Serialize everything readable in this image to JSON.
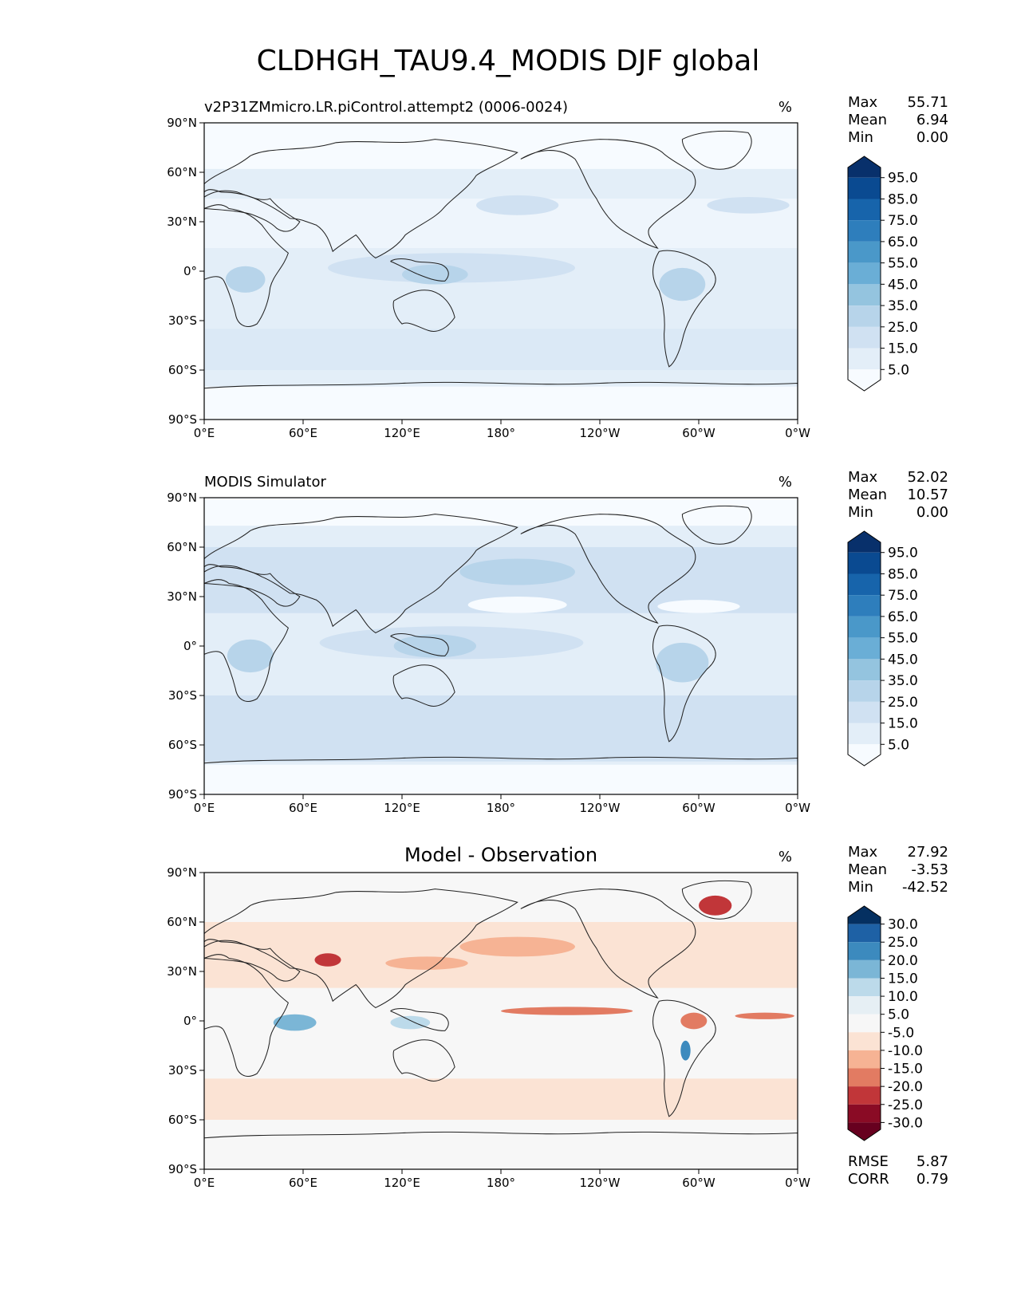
{
  "figure_title": "CLDHGH_TAU9.4_MODIS DJF global",
  "lat_ticks": [
    "90°N",
    "60°N",
    "30°N",
    "0°",
    "30°S",
    "60°S",
    "90°S"
  ],
  "lon_ticks": [
    "0°E",
    "60°E",
    "120°E",
    "180°",
    "120°W",
    "60°W",
    "0°W"
  ],
  "panels": [
    {
      "title_left": "v2P31ZMmicro.LR.piControl.attempt2 (0006-0024)",
      "title_center": "",
      "units": "%",
      "stats": [
        {
          "label": "Max",
          "value": "55.71"
        },
        {
          "label": "Mean",
          "value": "6.94"
        },
        {
          "label": "Min",
          "value": "0.00"
        }
      ],
      "colorbar": {
        "labels": [
          "95.0",
          "85.0",
          "75.0",
          "65.0",
          "55.0",
          "45.0",
          "35.0",
          "25.0",
          "15.0",
          "5.0"
        ],
        "colors": [
          "#08306b",
          "#0a4a91",
          "#1764ab",
          "#2e7ebc",
          "#4a98c9",
          "#6aaed6",
          "#94c4df",
          "#b7d4ea",
          "#d0e1f2",
          "#e3eef8",
          "#f7fbff"
        ]
      }
    },
    {
      "title_left": "MODIS Simulator",
      "title_center": "",
      "units": "%",
      "stats": [
        {
          "label": "Max",
          "value": "52.02"
        },
        {
          "label": "Mean",
          "value": "10.57"
        },
        {
          "label": "Min",
          "value": "0.00"
        }
      ],
      "colorbar": {
        "labels": [
          "95.0",
          "85.0",
          "75.0",
          "65.0",
          "55.0",
          "45.0",
          "35.0",
          "25.0",
          "15.0",
          "5.0"
        ],
        "colors": [
          "#08306b",
          "#0a4a91",
          "#1764ab",
          "#2e7ebc",
          "#4a98c9",
          "#6aaed6",
          "#94c4df",
          "#b7d4ea",
          "#d0e1f2",
          "#e3eef8",
          "#f7fbff"
        ]
      }
    },
    {
      "title_left": "",
      "title_center": "Model - Observation",
      "units": "%",
      "stats": [
        {
          "label": "Max",
          "value": "27.92"
        },
        {
          "label": "Mean",
          "value": "-3.53"
        },
        {
          "label": "Min",
          "value": "-42.52"
        }
      ],
      "colorbar": {
        "labels": [
          "30.0",
          "25.0",
          "20.0",
          "15.0",
          "10.0",
          "5.0",
          "-5.0",
          "-10.0",
          "-15.0",
          "-20.0",
          "-25.0",
          "-30.0"
        ],
        "colors": [
          "#053061",
          "#1e61a5",
          "#3c8abe",
          "#7bb6d6",
          "#bcdaea",
          "#e6eff4",
          "#f7f7f7",
          "#fbe3d4",
          "#f6b394",
          "#e27b62",
          "#c13639",
          "#8a0b25",
          "#67001f"
        ]
      },
      "footer_stats": [
        {
          "label": "RMSE",
          "value": "5.87"
        },
        {
          "label": "CORR",
          "value": "0.79"
        }
      ]
    }
  ]
}
